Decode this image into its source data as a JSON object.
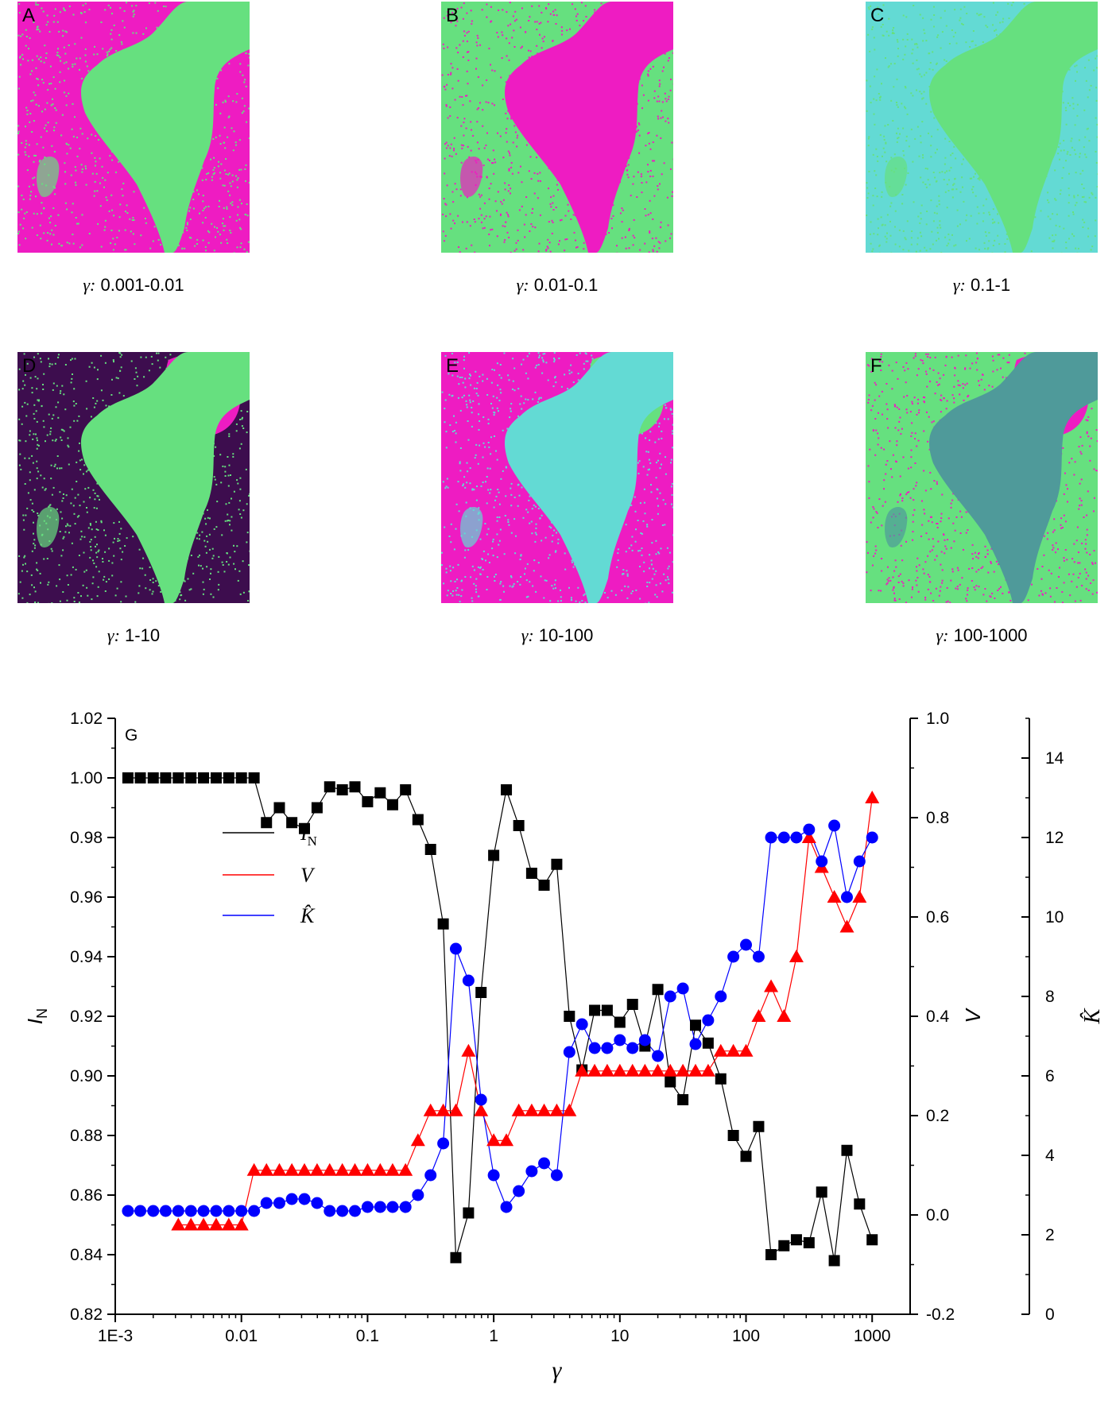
{
  "panels": [
    {
      "letter": "A",
      "caption": "0.001-0.01",
      "colors": {
        "bg": "#ee1cc2",
        "fg": "#66e07f",
        "noise": "#66e07f"
      }
    },
    {
      "letter": "B",
      "caption": "0.01-0.1",
      "colors": {
        "bg": "#66e07f",
        "fg": "#ee1cc2",
        "noise": "#ee1cc2"
      }
    },
    {
      "letter": "C",
      "caption": "0.1-1",
      "colors": {
        "bg": "#63dad4",
        "fg": "#66e07f",
        "noise": "#66e07f"
      }
    },
    {
      "letter": "D",
      "caption": "1-10",
      "colors": {
        "bg": "#3d0d4e",
        "fg": "#66e07f",
        "noise": "#66e07f",
        "corner": "#ee1cc2"
      }
    },
    {
      "letter": "E",
      "caption": "10-100",
      "colors": {
        "bg": "#ee1cc2",
        "fg": "#63dad4",
        "noise": "#63dad4",
        "corner": "#66e07f"
      }
    },
    {
      "letter": "F",
      "caption": "100-1000",
      "colors": {
        "bg": "#66e07f",
        "fg": "#4f9a9a",
        "noise": "#ee1cc2",
        "corner": "#ee1cc2"
      }
    }
  ],
  "caption_prefix": "γ:",
  "colors": {
    "IN": "#000000",
    "V": "#ff0000",
    "K": "#0000ff"
  },
  "chart_data": {
    "type": "scatter",
    "panel_label": "G",
    "xlabel": "γ",
    "xscale": "log",
    "xlim": [
      0.001,
      2000
    ],
    "xticks": [
      0.001,
      0.01,
      0.1,
      1,
      10,
      100,
      1000
    ],
    "xtick_labels": [
      "1E-3",
      "0.01",
      "0.1",
      "1",
      "10",
      "100",
      "1000"
    ],
    "y_left": {
      "label_main": "I",
      "label_sub": "N",
      "lim": [
        0.82,
        1.02
      ],
      "ticks": [
        0.82,
        0.84,
        0.86,
        0.88,
        0.9,
        0.92,
        0.94,
        0.96,
        0.98,
        1.0,
        1.02
      ],
      "tick_labels": [
        "0.82",
        "0.84",
        "0.86",
        "0.88",
        "0.90",
        "0.92",
        "0.94",
        "0.96",
        "0.98",
        "1.00",
        "1.02"
      ]
    },
    "y_right1": {
      "label": "V",
      "lim": [
        -0.2,
        1.0
      ],
      "ticks": [
        -0.2,
        0,
        0.2,
        0.4,
        0.6,
        0.8,
        1.0
      ],
      "tick_labels": [
        "-0.2",
        "0.0",
        "0.2",
        "0.4",
        "0.6",
        "0.8",
        "1.0"
      ]
    },
    "y_right2": {
      "label": "K̂",
      "lim": [
        0,
        15
      ],
      "ticks": [
        0,
        2,
        4,
        6,
        8,
        10,
        12,
        14
      ],
      "tick_labels": [
        "0",
        "2",
        "4",
        "6",
        "8",
        "10",
        "12",
        "14"
      ]
    },
    "legend": [
      {
        "label": "I",
        "sub": "N"
      },
      {
        "label": "V",
        "sub": ""
      },
      {
        "label": "K̂",
        "sub": ""
      }
    ],
    "series": [
      {
        "name": "I_N",
        "axis": "left",
        "marker": "square",
        "x": [
          0.00126,
          0.00158,
          0.002,
          0.00251,
          0.00316,
          0.00398,
          0.00501,
          0.00631,
          0.00794,
          0.01,
          0.0126,
          0.0158,
          0.02,
          0.0251,
          0.0316,
          0.0398,
          0.0501,
          0.0631,
          0.0794,
          0.1,
          0.126,
          0.158,
          0.2,
          0.251,
          0.316,
          0.398,
          0.501,
          0.631,
          0.794,
          1.0,
          1.26,
          1.58,
          2.0,
          2.51,
          3.16,
          3.98,
          5.01,
          6.31,
          7.94,
          10,
          12.6,
          15.8,
          20,
          25.1,
          31.6,
          39.8,
          50.1,
          63.1,
          79.4,
          100,
          126,
          158,
          200,
          251,
          316,
          398,
          501,
          631,
          794,
          1000
        ],
        "values": [
          1.0,
          1.0,
          1.0,
          1.0,
          1.0,
          1.0,
          1.0,
          1.0,
          1.0,
          1.0,
          1.0,
          0.985,
          0.99,
          0.985,
          0.983,
          0.99,
          0.997,
          0.996,
          0.997,
          0.992,
          0.995,
          0.991,
          0.996,
          0.986,
          0.976,
          0.951,
          0.839,
          0.854,
          0.928,
          0.974,
          0.996,
          0.984,
          0.968,
          0.964,
          0.971,
          0.92,
          0.902,
          0.922,
          0.922,
          0.918,
          0.924,
          0.91,
          0.929,
          0.898,
          0.892,
          0.917,
          0.911,
          0.899,
          0.88,
          0.873,
          0.883,
          0.84,
          0.843,
          0.845,
          0.844,
          0.861,
          0.838,
          0.875,
          0.857,
          0.845
        ]
      },
      {
        "name": "V",
        "axis": "right1",
        "marker": "triangle",
        "x": [
          0.00316,
          0.00398,
          0.00501,
          0.00631,
          0.00794,
          0.01,
          0.0126,
          0.0158,
          0.02,
          0.0251,
          0.0316,
          0.0398,
          0.0501,
          0.0631,
          0.0794,
          0.1,
          0.126,
          0.158,
          0.2,
          0.251,
          0.316,
          0.398,
          0.501,
          0.631,
          0.794,
          1.0,
          1.26,
          1.58,
          2.0,
          2.51,
          3.16,
          3.98,
          5.01,
          6.31,
          7.94,
          10,
          12.6,
          15.8,
          20,
          25.1,
          31.6,
          39.8,
          50.1,
          63.1,
          79.4,
          100,
          126,
          158,
          200,
          251,
          316,
          398,
          501,
          631,
          794,
          1000
        ],
        "values": [
          -0.02,
          -0.02,
          -0.02,
          -0.02,
          -0.02,
          -0.02,
          0.09,
          0.09,
          0.09,
          0.09,
          0.09,
          0.09,
          0.09,
          0.09,
          0.09,
          0.09,
          0.09,
          0.09,
          0.09,
          0.15,
          0.21,
          0.21,
          0.21,
          0.33,
          0.21,
          0.15,
          0.15,
          0.21,
          0.21,
          0.21,
          0.21,
          0.21,
          0.29,
          0.29,
          0.29,
          0.29,
          0.29,
          0.29,
          0.29,
          0.29,
          0.29,
          0.29,
          0.29,
          0.33,
          0.33,
          0.33,
          0.4,
          0.46,
          0.4,
          0.52,
          0.76,
          0.7,
          0.64,
          0.58,
          0.64,
          0.84
        ]
      },
      {
        "name": "K_hat",
        "axis": "right2",
        "marker": "circle",
        "x": [
          0.00126,
          0.00158,
          0.002,
          0.00251,
          0.00316,
          0.00398,
          0.00501,
          0.00631,
          0.00794,
          0.01,
          0.0126,
          0.0158,
          0.02,
          0.0251,
          0.0316,
          0.0398,
          0.0501,
          0.0631,
          0.0794,
          0.1,
          0.126,
          0.158,
          0.2,
          0.251,
          0.316,
          0.398,
          0.501,
          0.631,
          0.794,
          1.0,
          1.26,
          1.58,
          2.0,
          2.51,
          3.16,
          3.98,
          5.01,
          6.31,
          7.94,
          10,
          12.6,
          15.8,
          20,
          25.1,
          31.6,
          39.8,
          50.1,
          63.1,
          79.4,
          100,
          126,
          158,
          200,
          251,
          316,
          398,
          501,
          631,
          794,
          1000
        ],
        "values": [
          2.6,
          2.6,
          2.6,
          2.6,
          2.6,
          2.6,
          2.6,
          2.6,
          2.6,
          2.6,
          2.6,
          2.8,
          2.8,
          2.9,
          2.9,
          2.8,
          2.6,
          2.6,
          2.6,
          2.7,
          2.7,
          2.7,
          2.7,
          3.0,
          3.5,
          4.3,
          9.2,
          8.4,
          5.4,
          3.5,
          2.7,
          3.1,
          3.6,
          3.8,
          3.5,
          6.6,
          7.3,
          6.7,
          6.7,
          6.9,
          6.7,
          6.9,
          6.5,
          8.0,
          8.2,
          6.8,
          7.4,
          8.0,
          9.0,
          9.3,
          9.0,
          12.0,
          12.0,
          12.0,
          12.2,
          11.4,
          12.3,
          10.5,
          11.4,
          12.0
        ]
      }
    ]
  }
}
